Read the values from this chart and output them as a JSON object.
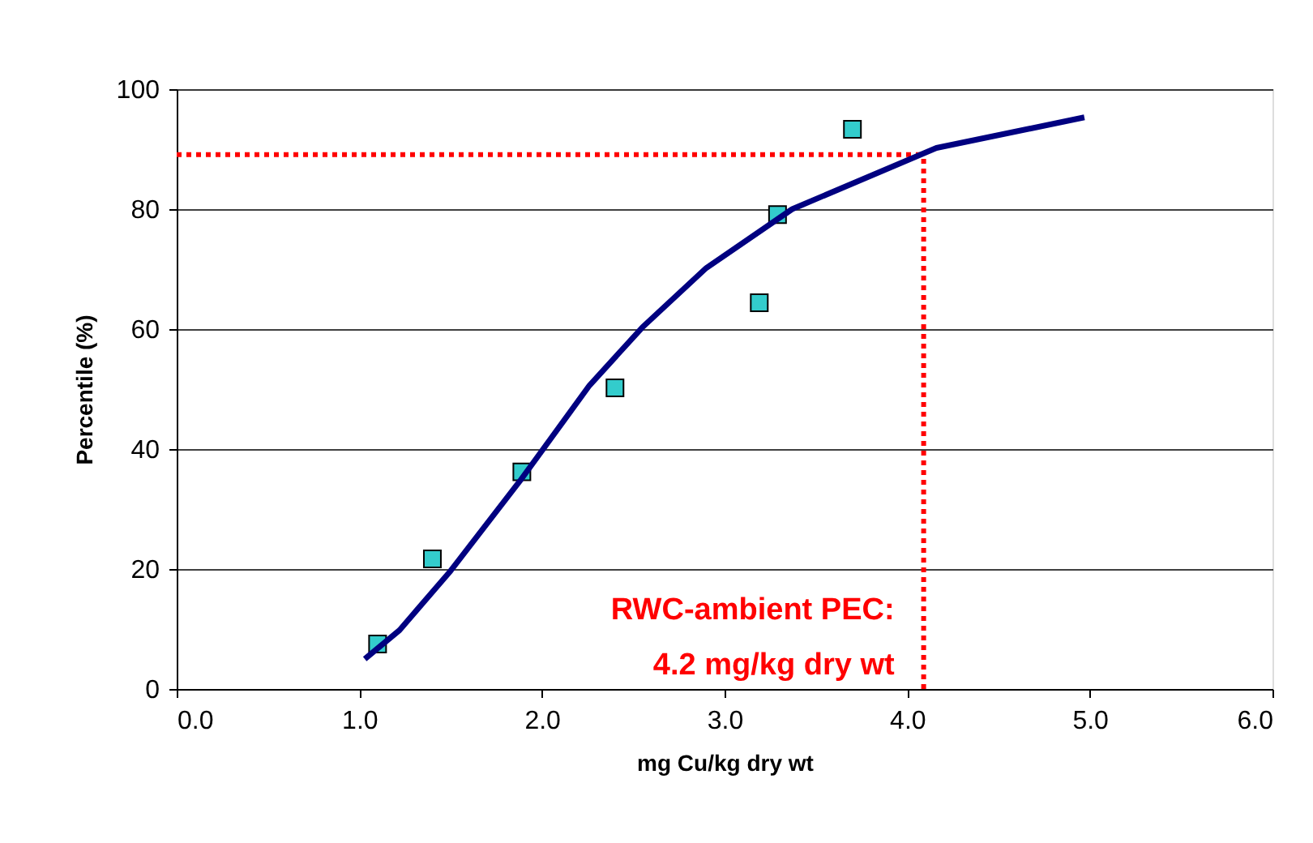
{
  "chart_data": {
    "type": "scatter",
    "xlabel": "mg Cu/kg dry wt",
    "ylabel": "Percentile (%)",
    "xlim": [
      0,
      6
    ],
    "xticks": [
      {
        "value": 0,
        "label": "0.0"
      },
      {
        "value": 1,
        "label": "1.0"
      },
      {
        "value": 2,
        "label": "2.0"
      },
      {
        "value": 3,
        "label": "3.0"
      },
      {
        "value": 4,
        "label": "4.0"
      },
      {
        "value": 5,
        "label": "5.0"
      },
      {
        "value": 6,
        "label": "6.0"
      }
    ],
    "ylim": [
      0,
      100
    ],
    "yticks": [
      0,
      20,
      40,
      60,
      80,
      100
    ],
    "grid": "y",
    "legend": false,
    "series": [
      {
        "marker": "square",
        "color": "#33cccc",
        "x": [
          1.1,
          1.4,
          1.89,
          2.4,
          3.19,
          3.29,
          3.7
        ],
        "values": [
          7.5,
          21.7,
          36.2,
          50.2,
          64.4,
          79.1,
          93.3
        ]
      },
      {
        "type": "line",
        "marker": "none",
        "line_style": "solid",
        "color": "#000080",
        "x": [
          1.03,
          1.22,
          1.5,
          1.88,
          2.26,
          2.55,
          2.9,
          3.37,
          4.16,
          4.97
        ],
        "values": [
          5.0,
          9.8,
          19.7,
          34.7,
          50.6,
          60.3,
          70.2,
          80.0,
          90.2,
          95.3
        ]
      }
    ],
    "ref_lines": [
      {
        "axis": "y",
        "value": 89.1,
        "label": null,
        "color": "#ff0000",
        "line_style": "dotted"
      },
      {
        "axis": "x",
        "value": 4.09,
        "label": null,
        "color": "#ff0000",
        "line_style": "dotted"
      }
    ],
    "annotations": [
      "RWC-ambient PEC:\n4.2 mg/kg dry wt"
    ]
  }
}
